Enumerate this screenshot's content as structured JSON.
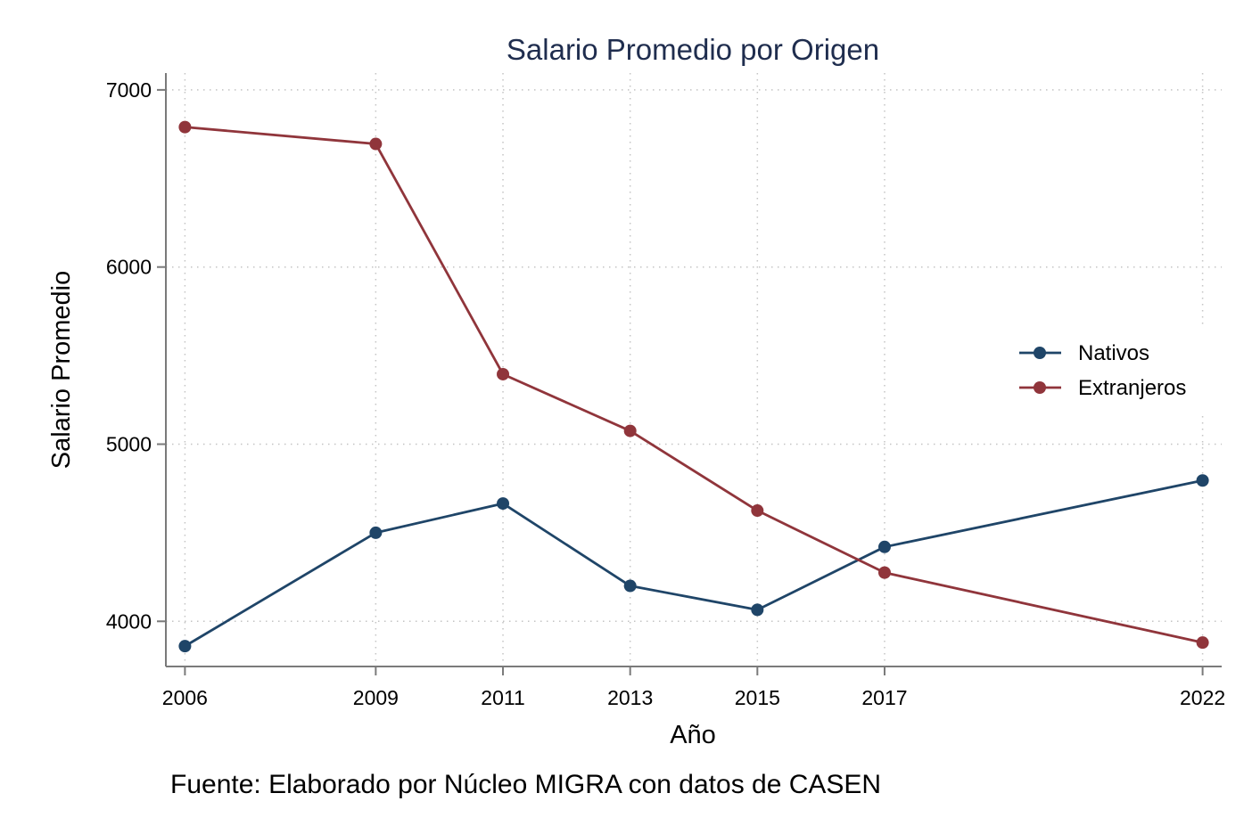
{
  "chart_data": {
    "type": "line",
    "title": "Salario Promedio por Origen",
    "xlabel": "Año",
    "ylabel": "Salario Promedio",
    "note": "Fuente: Elaborado por Núcleo MIGRA con datos de CASEN",
    "x": [
      2006,
      2009,
      2011,
      2013,
      2015,
      2017,
      2022
    ],
    "x_tick_labels": [
      "2006",
      "2009",
      "2011",
      "2013",
      "2015",
      "2017",
      "2022"
    ],
    "y_ticks": [
      4000,
      5000,
      6000,
      7000
    ],
    "y_tick_labels": [
      "4000",
      "5000",
      "6000",
      "7000"
    ],
    "xlim": [
      2005.7,
      2022.3
    ],
    "ylim": [
      3745,
      7095
    ],
    "grid": true,
    "legend_position": "right",
    "series": [
      {
        "name": "Nativos",
        "color": "#1f4568",
        "values": [
          3860,
          4500,
          4665,
          4200,
          4065,
          4420,
          4795
        ]
      },
      {
        "name": "Extranjeros",
        "color": "#90353b",
        "values": [
          6790,
          6695,
          5395,
          5075,
          4625,
          4275,
          3880
        ]
      }
    ],
    "colors": {
      "title": "#1f2d4e",
      "axis": "#7a7a7a",
      "grid": "#c4c4c4"
    }
  }
}
